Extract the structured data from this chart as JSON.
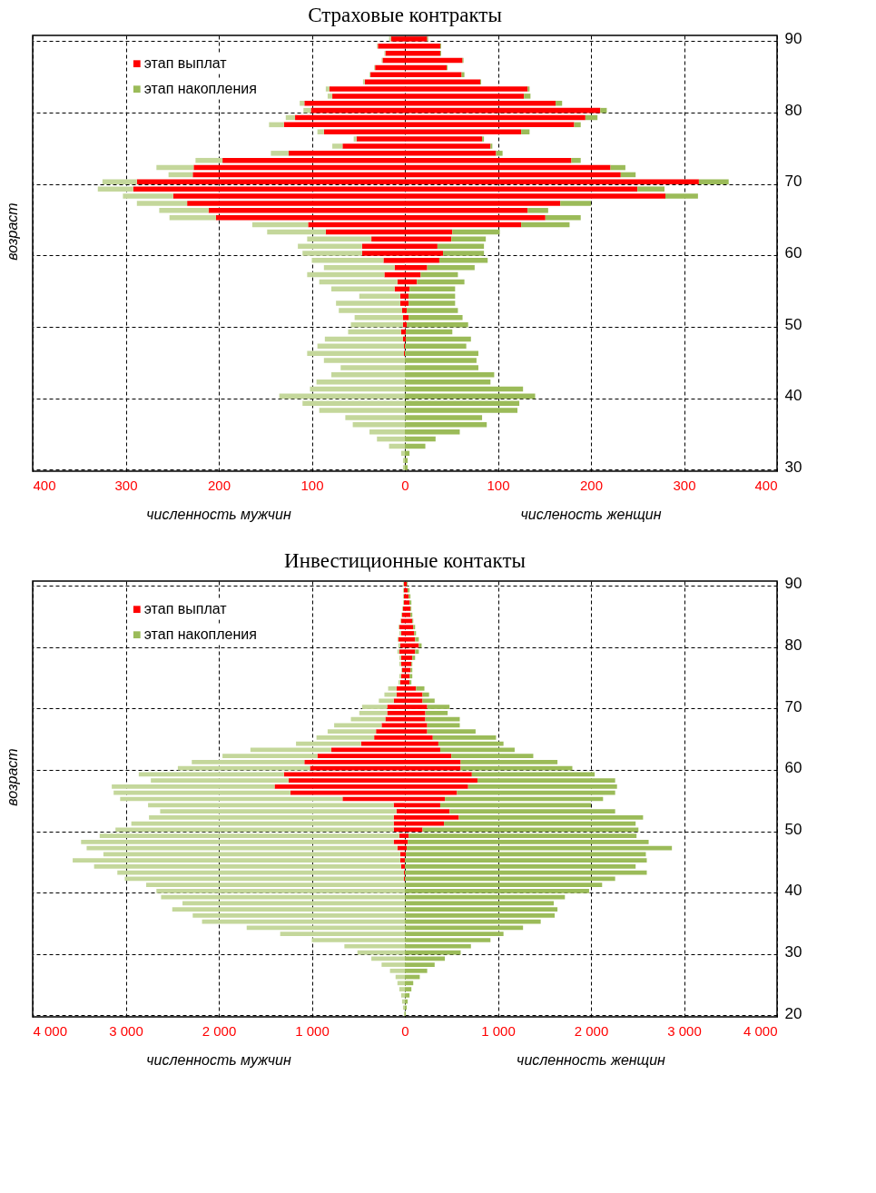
{
  "chart_data": [
    {
      "type": "bar",
      "orientation": "horizontal",
      "stacked": true,
      "title": "Страховые контракты",
      "xlabel": "численность мужчин",
      "ylabel": "возраст",
      "annotations": [
        "численость женщин"
      ],
      "grid": true,
      "legend": "top left",
      "xlim": [
        -400,
        400
      ],
      "xticks": [
        {
          "value": -400,
          "label": "400"
        },
        {
          "value": -300,
          "label": "300"
        },
        {
          "value": -200,
          "label": "200"
        },
        {
          "value": -100,
          "label": "100"
        },
        0,
        100,
        200,
        300,
        400
      ],
      "categories": [
        "90",
        null,
        null,
        null,
        null,
        null,
        null,
        null,
        null,
        null,
        "80",
        null,
        null,
        null,
        null,
        null,
        null,
        null,
        null,
        null,
        "70",
        null,
        null,
        null,
        null,
        null,
        null,
        null,
        null,
        null,
        "60",
        null,
        null,
        null,
        null,
        null,
        null,
        null,
        null,
        null,
        "50",
        null,
        null,
        null,
        null,
        null,
        null,
        null,
        null,
        null,
        "40",
        null,
        null,
        null,
        null,
        null,
        null,
        null,
        null,
        null,
        "30"
      ],
      "series": [
        {
          "color": "#ff0000",
          "values": [
            -15,
            -29,
            -21,
            -24,
            -32,
            -37,
            -43,
            -81,
            -78,
            -108,
            -101,
            -118,
            -130,
            -87,
            -52,
            -67,
            -125,
            -196,
            -227,
            -228,
            -288,
            -292,
            -249,
            -234,
            -211,
            -203,
            -104,
            -85,
            -36,
            -46,
            -46,
            -23,
            -11,
            -22,
            -8,
            -11,
            -5,
            -5,
            -3,
            -2,
            -2,
            -4,
            -2,
            -1,
            -1,
            null,
            null,
            null,
            null,
            null,
            null,
            null,
            null,
            null,
            null,
            null,
            null,
            null,
            null,
            null,
            null
          ]
        },
        {
          "color": "#c4d79b",
          "values": [
            -2,
            -1,
            -1,
            -1,
            -1,
            -1,
            -2,
            -4,
            -5,
            -5,
            -8,
            -10,
            -16,
            -7,
            -3,
            -11,
            -19,
            -29,
            -40,
            -26,
            -37,
            -38,
            -54,
            -54,
            -53,
            -50,
            -60,
            -63,
            -69,
            -69,
            -64,
            -77,
            -76,
            -83,
            -84,
            -68,
            -44,
            -69,
            -68,
            -52,
            -56,
            -57,
            -84,
            -93,
            -104,
            -87,
            -69,
            -79,
            -95,
            -102,
            -135,
            -110,
            -92,
            -64,
            -56,
            -38,
            -30,
            -17,
            -4,
            -2,
            -2
          ]
        },
        {
          "name": "этап выплат",
          "color": "#ff0000",
          "values": [
            24,
            38,
            38,
            62,
            45,
            61,
            81,
            132,
            128,
            162,
            210,
            194,
            182,
            125,
            83,
            92,
            98,
            179,
            221,
            232,
            316,
            250,
            280,
            167,
            132,
            151,
            125,
            51,
            50,
            35,
            41,
            37,
            24,
            17,
            13,
            5,
            4,
            4,
            2,
            4,
            2,
            1,
            1,
            null,
            null,
            null,
            null,
            null,
            null,
            null,
            null,
            null,
            null,
            null,
            null,
            null,
            null,
            null,
            null,
            null,
            null
          ]
        },
        {
          "name": "этап накопления",
          "color": "#9bbb59",
          "values": [
            1,
            1,
            1,
            1,
            1,
            3,
            1,
            2,
            7,
            7,
            7,
            13,
            7,
            9,
            2,
            2,
            7,
            10,
            16,
            16,
            32,
            29,
            35,
            33,
            22,
            38,
            52,
            51,
            37,
            50,
            44,
            52,
            51,
            40,
            51,
            49,
            50,
            50,
            55,
            58,
            66,
            50,
            70,
            66,
            79,
            77,
            79,
            96,
            92,
            127,
            140,
            123,
            121,
            83,
            88,
            59,
            33,
            22,
            5,
            3,
            3
          ]
        }
      ]
    },
    {
      "type": "bar",
      "orientation": "horizontal",
      "stacked": true,
      "title": "Инвестиционные контакты",
      "xlabel": "численность мужчин",
      "ylabel": "возраст",
      "annotations": [
        "численность женщин"
      ],
      "grid": true,
      "legend": "top left",
      "xlim": [
        -4000,
        4000
      ],
      "xticks": [
        {
          "value": -4000,
          "label": "4 000"
        },
        {
          "value": -3000,
          "label": "3 000"
        },
        {
          "value": -2000,
          "label": "2 000"
        },
        {
          "value": -1000,
          "label": "1 000"
        },
        0,
        {
          "value": 1000,
          "label": "1 000"
        },
        {
          "value": 2000,
          "label": "2 000"
        },
        {
          "value": 3000,
          "label": "3 000"
        },
        {
          "value": 4000,
          "label": "4 000"
        }
      ],
      "categories": [
        "90",
        null,
        null,
        null,
        null,
        null,
        null,
        null,
        null,
        null,
        "80",
        null,
        null,
        null,
        null,
        null,
        null,
        null,
        null,
        null,
        "70",
        null,
        null,
        null,
        null,
        null,
        null,
        null,
        null,
        null,
        "60",
        null,
        null,
        null,
        null,
        null,
        null,
        null,
        null,
        null,
        "50",
        null,
        null,
        null,
        null,
        null,
        null,
        null,
        null,
        null,
        "40",
        null,
        null,
        null,
        null,
        null,
        null,
        null,
        null,
        null,
        "30",
        null,
        null,
        null,
        null,
        null,
        null,
        null,
        null,
        null,
        "20"
      ],
      "series": [
        {
          "color": "#ff0000",
          "values": [
            -10,
            -10,
            -10,
            -10,
            -20,
            -30,
            -40,
            -60,
            -40,
            -70,
            -50,
            -60,
            -40,
            -40,
            -30,
            -40,
            -50,
            -90,
            -90,
            -120,
            -190,
            -190,
            -210,
            -250,
            -310,
            -330,
            -470,
            -790,
            -940,
            -1080,
            -1020,
            -1300,
            -1250,
            -1400,
            -1230,
            -670,
            -120,
            -90,
            -120,
            -120,
            -120,
            -60,
            -120,
            -80,
            -50,
            -50,
            -40,
            -10,
            -10,
            null,
            null,
            null,
            null,
            null,
            null,
            null,
            null,
            null,
            null,
            null,
            null,
            null,
            null,
            null,
            null,
            null,
            null,
            null,
            null,
            null,
            null
          ]
        },
        {
          "color": "#c4d79b",
          "values": [
            -10,
            -10,
            -10,
            -10,
            -10,
            -10,
            -10,
            -10,
            -20,
            -10,
            -20,
            -20,
            -20,
            -20,
            -10,
            -20,
            -20,
            -90,
            -130,
            -160,
            -270,
            -300,
            -370,
            -510,
            -520,
            -620,
            -700,
            -870,
            -1020,
            -1210,
            -1420,
            -1560,
            -1480,
            -1750,
            -1900,
            -2390,
            -2640,
            -2540,
            -2630,
            -2820,
            -2990,
            -3220,
            -3360,
            -3340,
            -3190,
            -3520,
            -3300,
            -3080,
            -3000,
            -2780,
            -2670,
            -2620,
            -2390,
            -2500,
            -2280,
            -2180,
            -1700,
            -1340,
            -1000,
            -650,
            -510,
            -360,
            -250,
            -160,
            -100,
            -80,
            -60,
            -40,
            -30,
            -20,
            -10
          ]
        },
        {
          "name": "этап выплат",
          "color": "#ff0000",
          "values": [
            20,
            30,
            40,
            50,
            60,
            60,
            80,
            90,
            100,
            110,
            150,
            110,
            80,
            70,
            60,
            50,
            50,
            120,
            190,
            190,
            240,
            220,
            220,
            240,
            240,
            300,
            360,
            380,
            500,
            600,
            600,
            720,
            780,
            680,
            560,
            430,
            380,
            480,
            580,
            420,
            190,
            40,
            30,
            20,
            10,
            null,
            null,
            null,
            null,
            null,
            null,
            null,
            null,
            null,
            null,
            null,
            null,
            null,
            null,
            null,
            null,
            null,
            null,
            null,
            null,
            null,
            null,
            null,
            null,
            null,
            null
          ]
        },
        {
          "name": "этап накопления",
          "color": "#9bbb59",
          "values": [
            10,
            20,
            20,
            20,
            10,
            20,
            10,
            20,
            20,
            40,
            30,
            40,
            30,
            10,
            20,
            30,
            20,
            90,
            70,
            130,
            240,
            240,
            370,
            350,
            520,
            680,
            700,
            800,
            880,
            1040,
            1200,
            1320,
            1480,
            1600,
            1700,
            1700,
            1620,
            1780,
            1980,
            2060,
            2320,
            2450,
            2590,
            2850,
            2580,
            2600,
            2480,
            2600,
            2260,
            2120,
            1980,
            1720,
            1600,
            1640,
            1610,
            1460,
            1270,
            1060,
            920,
            710,
            600,
            430,
            320,
            240,
            160,
            90,
            70,
            50,
            30,
            20,
            10
          ]
        }
      ]
    }
  ]
}
